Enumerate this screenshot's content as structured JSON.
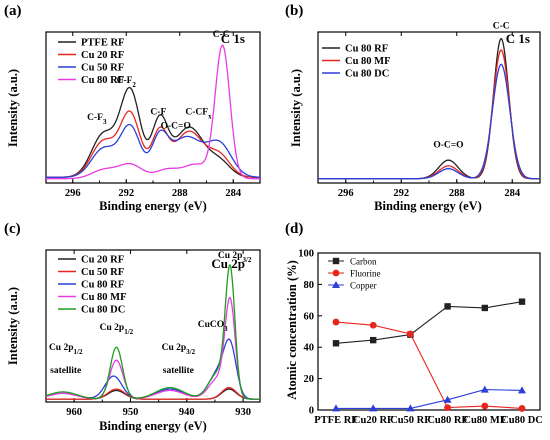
{
  "colors": {
    "black": "#222222",
    "red": "#e8261e",
    "blue": "#2b3fd9",
    "magenta": "#e93be5",
    "green": "#1f9e1f"
  },
  "chart_data": [
    {
      "id": "a",
      "type": "line",
      "panel_label": "(a)",
      "corner_label": "C 1s",
      "xlabel": "Binding energy (eV)",
      "ylabel": "Intensity (a.u.)",
      "xlim": [
        298,
        282
      ],
      "x_reversed": true,
      "x_ticks": [
        296,
        292,
        288,
        284
      ],
      "x_tick_labels": [
        "296",
        "292",
        "288",
        "284"
      ],
      "y_axis_labels": false,
      "series": [
        {
          "name": "PTFE RF",
          "color": "#222222",
          "peaks": [
            [
              293.7,
              0.3,
              0.9
            ],
            [
              291.7,
              0.6,
              0.75
            ],
            [
              289.5,
              0.38,
              0.6
            ],
            [
              287.3,
              0.35,
              1.1
            ],
            [
              285.0,
              0.1,
              0.8
            ]
          ],
          "baseline": 0.04
        },
        {
          "name": "Cu 20 RF",
          "color": "#e8261e",
          "peaks": [
            [
              293.7,
              0.25,
              0.9
            ],
            [
              291.7,
              0.44,
              0.75
            ],
            [
              289.5,
              0.3,
              0.6
            ],
            [
              287.3,
              0.32,
              1.1
            ],
            [
              285.0,
              0.14,
              0.8
            ]
          ],
          "baseline": 0.04
        },
        {
          "name": "Cu 50 RF",
          "color": "#2b3fd9",
          "peaks": [
            [
              293.7,
              0.2,
              0.9
            ],
            [
              291.7,
              0.35,
              0.75
            ],
            [
              289.5,
              0.25,
              0.6
            ],
            [
              287.5,
              0.28,
              1.2
            ],
            [
              285.0,
              0.22,
              0.9
            ]
          ],
          "baseline": 0.04
        },
        {
          "name": "Cu 80 RF",
          "color": "#e93be5",
          "peaks": [
            [
              293.7,
              0.06,
              0.9
            ],
            [
              291.7,
              0.1,
              0.9
            ],
            [
              289.0,
              0.06,
              0.8
            ],
            [
              286.8,
              0.1,
              1.0
            ],
            [
              284.8,
              0.92,
              0.55
            ]
          ],
          "baseline": 0.03
        }
      ],
      "annotations": [
        {
          "text": "C-F",
          "sub": "3",
          "x": 294.2,
          "y": 0.44
        },
        {
          "text": "C-F",
          "sub": "2",
          "x": 292.0,
          "y": 0.7
        },
        {
          "text": "C-F",
          "x": 289.6,
          "y": 0.48
        },
        {
          "text": "O-C=O",
          "x": 288.3,
          "y": 0.38
        },
        {
          "text": "C-CF",
          "sub": "x",
          "x": 286.6,
          "y": 0.48
        },
        {
          "text": "C-C",
          "x": 284.9,
          "y": 1.02
        }
      ]
    },
    {
      "id": "b",
      "type": "line",
      "panel_label": "(b)",
      "corner_label": "C 1s",
      "xlabel": "Binding energy (eV)",
      "ylabel": "Intensity (a.u.)",
      "xlim": [
        298,
        282
      ],
      "x_reversed": true,
      "x_ticks": [
        296,
        292,
        288,
        284
      ],
      "x_tick_labels": [
        "296",
        "292",
        "288",
        "284"
      ],
      "y_axis_labels": false,
      "series": [
        {
          "name": "Cu 80 RF",
          "color": "#222222",
          "peaks": [
            [
              288.6,
              0.13,
              0.7
            ],
            [
              284.8,
              0.98,
              0.55
            ]
          ],
          "baseline": 0.03
        },
        {
          "name": "Cu 80 MF",
          "color": "#e8261e",
          "peaks": [
            [
              288.6,
              0.09,
              0.7
            ],
            [
              284.8,
              0.9,
              0.58
            ]
          ],
          "baseline": 0.03
        },
        {
          "name": "Cu 80 DC",
          "color": "#2b3fd9",
          "peaks": [
            [
              288.6,
              0.07,
              0.7
            ],
            [
              284.8,
              0.8,
              0.62
            ]
          ],
          "baseline": 0.03
        }
      ],
      "annotations": [
        {
          "text": "O-C=O",
          "x": 288.6,
          "y": 0.25
        },
        {
          "text": "C-C",
          "x": 284.8,
          "y": 1.08
        }
      ]
    },
    {
      "id": "c",
      "type": "line",
      "panel_label": "(c)",
      "corner_label": "Cu 2p",
      "xlabel": "Binding energy (eV)",
      "ylabel": "Intensity (a.u.)",
      "xlim": [
        965,
        927
      ],
      "x_reversed": true,
      "x_ticks": [
        960,
        950,
        940,
        930
      ],
      "x_tick_labels": [
        "960",
        "950",
        "940",
        "930"
      ],
      "y_axis_labels": false,
      "series": [
        {
          "name": "Cu 20 RF",
          "color": "#222222",
          "peaks": [
            [
              952.5,
              0.06,
              1.5
            ],
            [
              932.5,
              0.07,
              1.3
            ]
          ],
          "baseline": 0.02
        },
        {
          "name": "Cu 50 RF",
          "color": "#e8261e",
          "peaks": [
            [
              952.5,
              0.07,
              1.5
            ],
            [
              932.5,
              0.08,
              1.3
            ]
          ],
          "baseline": 0.02
        },
        {
          "name": "Cu 80 RF",
          "color": "#2b3fd9",
          "peaks": [
            [
              962.0,
              0.04,
              2.5
            ],
            [
              953.0,
              0.16,
              1.5
            ],
            [
              943.0,
              0.07,
              2.5
            ],
            [
              934.5,
              0.18,
              1.6
            ],
            [
              932.3,
              0.34,
              1.1
            ]
          ],
          "baseline": 0.02
        },
        {
          "name": "Cu 80 MF",
          "color": "#e93be5",
          "peaks": [
            [
              962.0,
              0.04,
              2.5
            ],
            [
              952.5,
              0.27,
              1.2
            ],
            [
              943.0,
              0.06,
              2.5
            ],
            [
              934.5,
              0.14,
              1.6
            ],
            [
              932.3,
              0.65,
              0.9
            ]
          ],
          "baseline": 0.02
        },
        {
          "name": "Cu 80 DC",
          "color": "#1f9e1f",
          "peaks": [
            [
              962.0,
              0.05,
              2.5
            ],
            [
              952.5,
              0.36,
              1.1
            ],
            [
              943.0,
              0.08,
              2.5
            ],
            [
              934.5,
              0.18,
              1.6
            ],
            [
              932.3,
              0.86,
              0.85
            ]
          ],
          "baseline": 0.02
        }
      ],
      "annotations": [
        {
          "text": "Cu 2p",
          "sub": "1/2",
          "x": 961.5,
          "y": 0.36
        },
        {
          "text": "satellite",
          "x": 961.5,
          "y": 0.2
        },
        {
          "text": "Cu 2p",
          "sub": "1/2",
          "x": 952.5,
          "y": 0.5
        },
        {
          "text": "Cu 2p",
          "sub": "3/2",
          "x": 941.5,
          "y": 0.36
        },
        {
          "text": "satellite",
          "x": 941.5,
          "y": 0.2
        },
        {
          "text": "CuCO",
          "sub": "3",
          "x": 935.4,
          "y": 0.52
        },
        {
          "text": "Cu 2p",
          "sub": "3/2",
          "x": 931.5,
          "y": 1.0
        }
      ]
    },
    {
      "id": "d",
      "type": "line",
      "panel_label": "(d)",
      "xlabel": "",
      "ylabel": "Atomic concentration (%)",
      "categories": [
        "PTFE RF",
        "Cu20 RF",
        "Cu50 RF",
        "Cu80 RF",
        "Cu80 MF",
        "Cu80 DC"
      ],
      "ylim": [
        0,
        100
      ],
      "y_ticks": [
        0,
        20,
        40,
        60,
        80,
        100
      ],
      "legend_position": "top-left",
      "series": [
        {
          "name": "Carbon",
          "color": "#222222",
          "marker": "square",
          "values": [
            42.5,
            44.5,
            48.0,
            66.0,
            65.0,
            69.0
          ]
        },
        {
          "name": "Fluorine",
          "color": "#e8261e",
          "marker": "circle",
          "values": [
            56.0,
            54.0,
            48.5,
            1.5,
            2.5,
            1.0
          ]
        },
        {
          "name": "Copper",
          "color": "#2b3fd9",
          "marker": "triangle",
          "values": [
            1.0,
            1.0,
            1.0,
            6.5,
            13.0,
            12.5
          ]
        }
      ]
    }
  ]
}
